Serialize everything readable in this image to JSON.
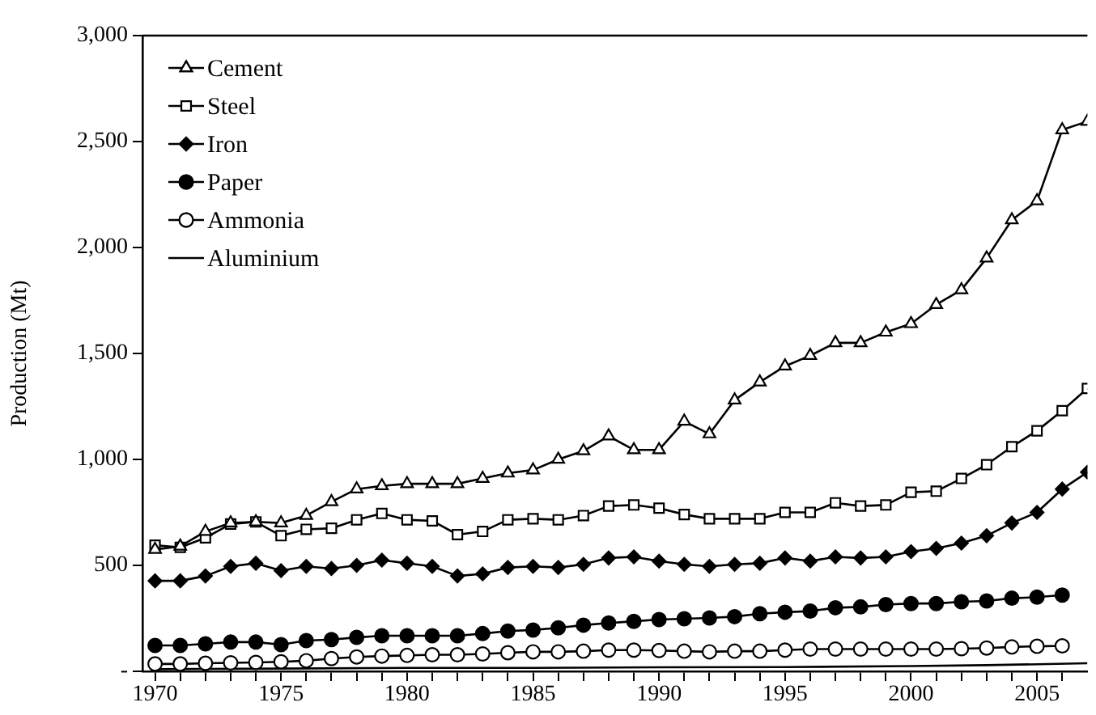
{
  "chart_data": {
    "type": "line",
    "ylabel": "Production (Mt)",
    "x": [
      1970,
      1971,
      1972,
      1973,
      1974,
      1975,
      1976,
      1977,
      1978,
      1979,
      1980,
      1981,
      1982,
      1983,
      1984,
      1985,
      1986,
      1987,
      1988,
      1989,
      1990,
      1991,
      1992,
      1993,
      1994,
      1995,
      1996,
      1997,
      1998,
      1999,
      2000,
      2001,
      2002,
      2003,
      2004,
      2005,
      2006,
      2007
    ],
    "series": [
      {
        "name": "Cement",
        "color": "#000000",
        "marker": "triangle",
        "values": [
          575,
          590,
          660,
          700,
          705,
          700,
          735,
          800,
          860,
          875,
          885,
          885,
          885,
          910,
          935,
          950,
          1000,
          1040,
          1110,
          1045,
          1045,
          1180,
          1120,
          1280,
          1365,
          1440,
          1490,
          1550,
          1550,
          1600,
          1640,
          1730,
          1800,
          1950,
          2130,
          2220,
          2555,
          2595
        ]
      },
      {
        "name": "Steel",
        "color": "#000000",
        "marker": "square",
        "values": [
          595,
          585,
          630,
          695,
          705,
          640,
          670,
          675,
          715,
          745,
          715,
          710,
          645,
          660,
          715,
          720,
          715,
          735,
          780,
          785,
          770,
          740,
          720,
          720,
          720,
          750,
          750,
          795,
          780,
          785,
          845,
          850,
          910,
          975,
          1060,
          1135,
          1230,
          1335
        ]
      },
      {
        "name": "Iron",
        "color": "#000000",
        "marker": "diamond",
        "values": [
          427,
          427,
          450,
          495,
          510,
          475,
          495,
          485,
          500,
          525,
          510,
          495,
          450,
          460,
          490,
          495,
          490,
          505,
          535,
          540,
          520,
          505,
          495,
          505,
          510,
          535,
          520,
          540,
          535,
          540,
          565,
          580,
          605,
          640,
          700,
          750,
          860,
          940
        ]
      },
      {
        "name": "Paper",
        "color": "#000000",
        "marker": "circle",
        "values": [
          122,
          122,
          130,
          138,
          138,
          126,
          145,
          150,
          160,
          168,
          168,
          168,
          168,
          178,
          190,
          195,
          205,
          218,
          228,
          236,
          244,
          248,
          252,
          258,
          272,
          279,
          284,
          300,
          304,
          315,
          320,
          320,
          328,
          332,
          345,
          350,
          360,
          null
        ]
      },
      {
        "name": "Ammonia",
        "color": "#000000",
        "marker": "circle",
        "values": [
          35,
          35,
          38,
          40,
          42,
          45,
          50,
          60,
          68,
          72,
          75,
          78,
          78,
          82,
          88,
          92,
          92,
          95,
          100,
          100,
          98,
          95,
          92,
          95,
          95,
          100,
          105,
          105,
          105,
          105,
          105,
          105,
          107,
          110,
          115,
          118,
          120,
          null
        ]
      },
      {
        "name": "Aluminium",
        "color": "#000000",
        "marker": "none",
        "x": [
          1970,
          1975,
          1980,
          1985,
          1990,
          1995,
          2000,
          2003,
          2007
        ],
        "values": [
          10,
          13,
          16,
          16,
          19,
          20,
          25,
          29,
          38
        ]
      }
    ],
    "xlim": [
      1969.5,
      2007
    ],
    "xticks": [
      1970,
      {
        "value": 1971,
        "label": null
      },
      {
        "value": 1972,
        "label": null
      },
      {
        "value": 1973,
        "label": null
      },
      {
        "value": 1974,
        "label": null
      },
      1975,
      {
        "value": 1976,
        "label": null
      },
      {
        "value": 1977,
        "label": null
      },
      {
        "value": 1978,
        "label": null
      },
      {
        "value": 1979,
        "label": null
      },
      1980,
      {
        "value": 1981,
        "label": null
      },
      {
        "value": 1982,
        "label": null
      },
      {
        "value": 1983,
        "label": null
      },
      {
        "value": 1984,
        "label": null
      },
      1985,
      {
        "value": 1986,
        "label": null
      },
      {
        "value": 1987,
        "label": null
      },
      {
        "value": 1988,
        "label": null
      },
      {
        "value": 1989,
        "label": null
      },
      1990,
      {
        "value": 1991,
        "label": null
      },
      {
        "value": 1992,
        "label": null
      },
      {
        "value": 1993,
        "label": null
      },
      {
        "value": 1994,
        "label": null
      },
      1995,
      {
        "value": 1996,
        "label": null
      },
      {
        "value": 1997,
        "label": null
      },
      {
        "value": 1998,
        "label": null
      },
      {
        "value": 1999,
        "label": null
      },
      2000,
      {
        "value": 2001,
        "label": null
      },
      {
        "value": 2002,
        "label": null
      },
      {
        "value": 2003,
        "label": null
      },
      {
        "value": 2004,
        "label": null
      },
      2005,
      {
        "value": 2006,
        "label": null
      }
    ],
    "ylim": [
      0,
      3000
    ],
    "yticks": [
      {
        "value": 0,
        "label": "-"
      },
      500,
      {
        "value": 1000,
        "label": "1,000"
      },
      {
        "value": 1500,
        "label": "1,500"
      },
      {
        "value": 2000,
        "label": "2,000"
      },
      {
        "value": 2500,
        "label": "2,500"
      },
      {
        "value": 3000,
        "label": "3,000"
      }
    ],
    "grid": false,
    "legend": "top left",
    "line_style": "solid"
  }
}
